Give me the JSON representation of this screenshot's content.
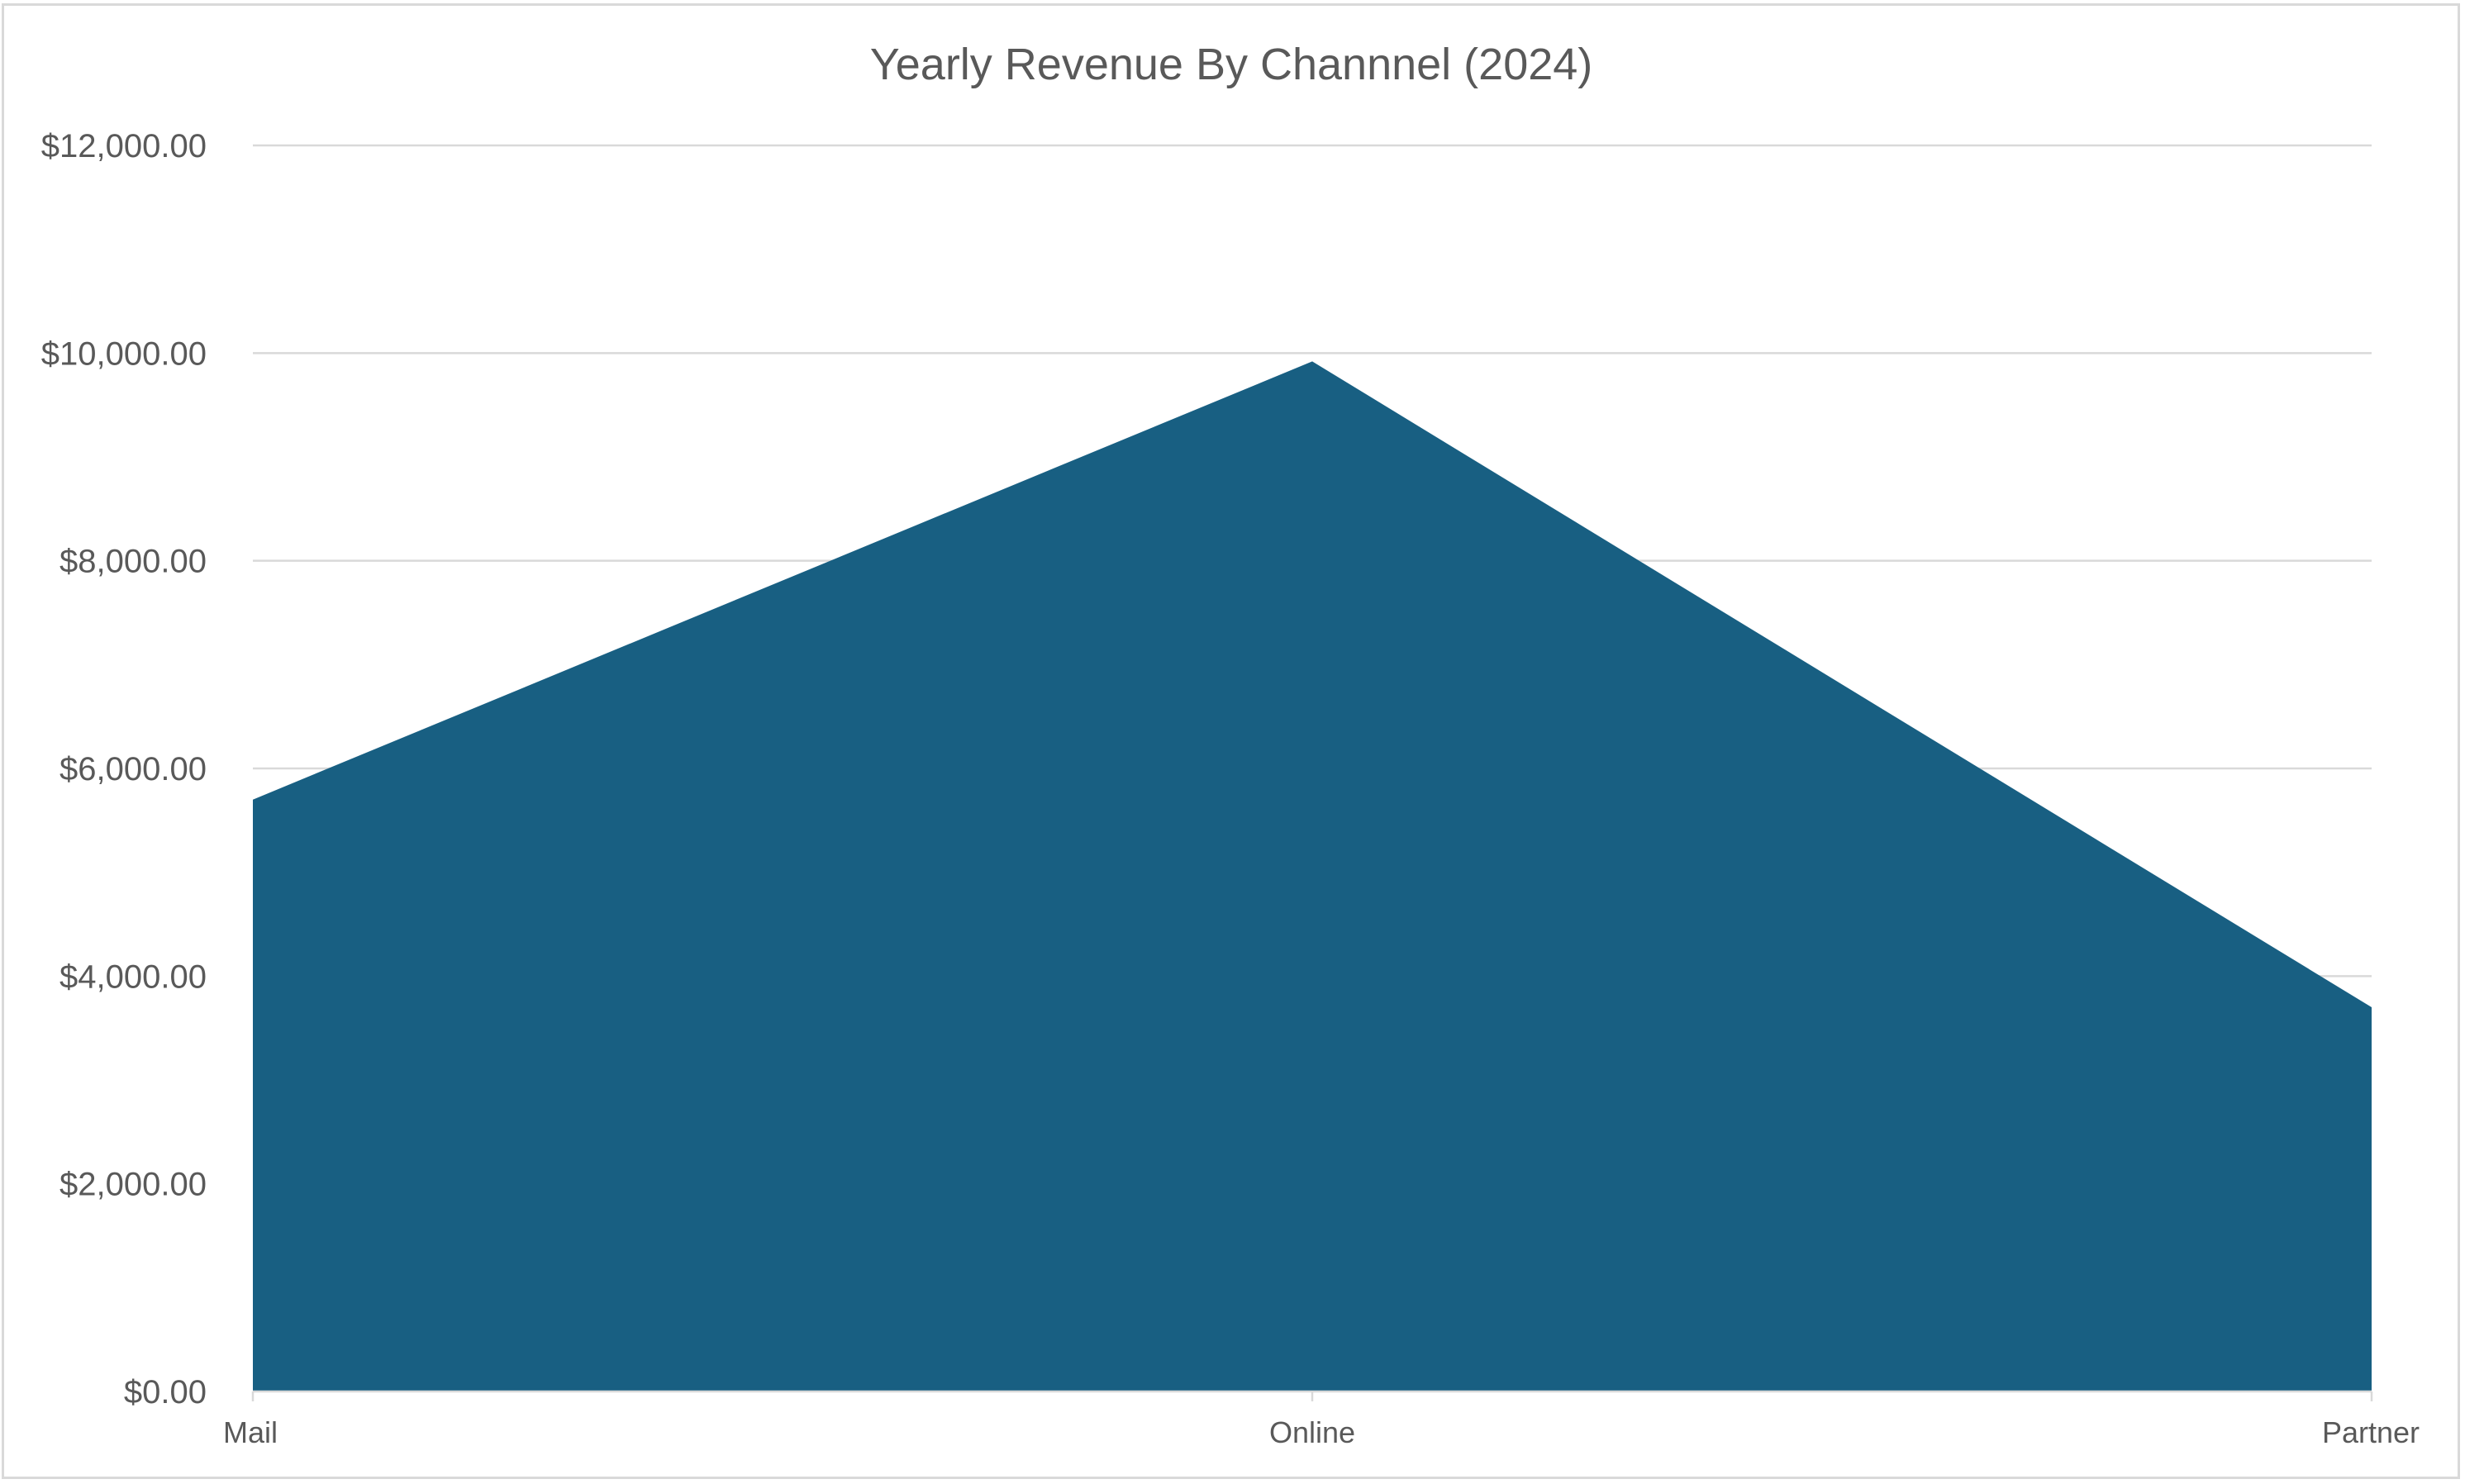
{
  "chart_data": {
    "type": "area",
    "title": "Yearly Revenue By Channnel (2024)",
    "xlabel": "",
    "ylabel": "",
    "categories": [
      "Mail",
      "Online",
      "Partner"
    ],
    "series": [
      {
        "values": [
          5700,
          9920,
          3700
        ]
      }
    ],
    "ylim": [
      0,
      12000
    ],
    "yticks": [
      0,
      2000,
      4000,
      6000,
      8000,
      10000,
      12000
    ],
    "ytick_labels": [
      "$0.00",
      "$2,000.00",
      "$4,000.00",
      "$6,000.00",
      "$8,000.00",
      "$10,000.00",
      "$12,000.00"
    ],
    "grid": true,
    "legend": "none",
    "fill_color": "#185f82"
  }
}
